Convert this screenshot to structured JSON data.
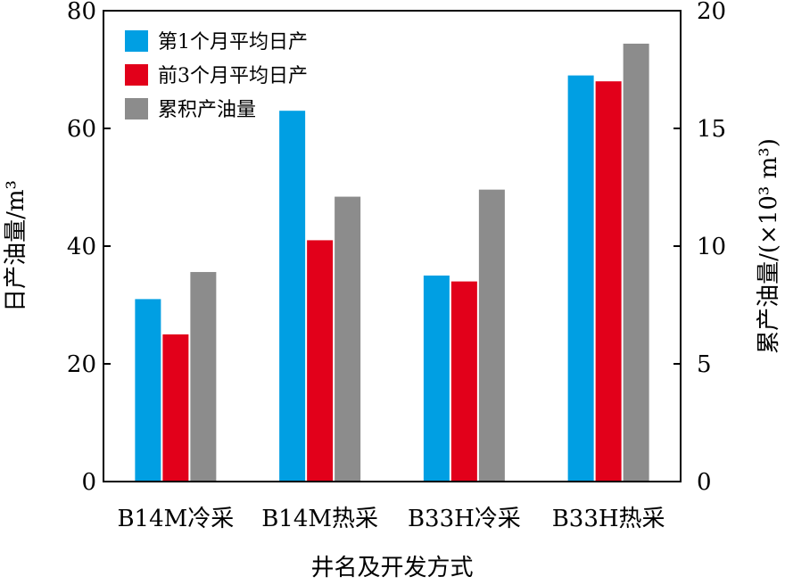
{
  "chart_data": {
    "type": "bar",
    "categories": [
      "B14M冷采",
      "B14M热采",
      "B33H冷采",
      "B33H热采"
    ],
    "series": [
      {
        "name": "第1个月平均日产",
        "axis": "left",
        "color": "#009FE3",
        "values": [
          31,
          63,
          35,
          69
        ]
      },
      {
        "name": "前3个月平均日产",
        "axis": "left",
        "color": "#E2001A",
        "values": [
          25,
          41,
          34,
          68
        ]
      },
      {
        "name": "累积产油量",
        "axis": "right",
        "color": "#8C8C8C",
        "values": [
          8.9,
          12.1,
          12.4,
          18.6
        ]
      }
    ],
    "xlabel": "井名及开发方式",
    "ylabel_left": "日产油量/m³",
    "ylabel_right": "累产油量/(×10³ m³)",
    "ylim_left": [
      0,
      80
    ],
    "ylim_right": [
      0,
      20
    ],
    "yticks_left": [
      "0",
      "20",
      "40",
      "60",
      "80"
    ],
    "yticks_right": [
      "0",
      "5",
      "10",
      "15",
      "20"
    ],
    "legend_position": "top-left",
    "grid": false
  }
}
